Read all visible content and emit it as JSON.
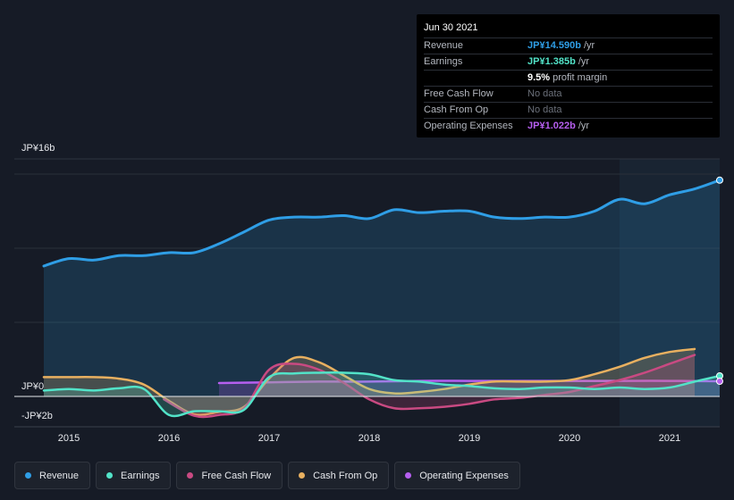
{
  "tooltip": {
    "date": "Jun 30 2021",
    "rows": [
      {
        "label": "Revenue",
        "value": "JP¥14.590b",
        "suffix": "/yr",
        "color": "#2f9ee6"
      },
      {
        "label": "Earnings",
        "value": "JP¥1.385b",
        "suffix": "/yr",
        "color": "#52e3c8"
      },
      {
        "label": "",
        "value": "9.5%",
        "suffix": "profit margin",
        "color": "#ffffff"
      },
      {
        "label": "Free Cash Flow",
        "value": "No data",
        "suffix": "",
        "color": "#6b707a"
      },
      {
        "label": "Cash From Op",
        "value": "No data",
        "suffix": "",
        "color": "#6b707a"
      },
      {
        "label": "Operating Expenses",
        "value": "JP¥1.022b",
        "suffix": "/yr",
        "color": "#b65ff0"
      }
    ]
  },
  "legend": [
    {
      "label": "Revenue",
      "color": "#2f9ee6"
    },
    {
      "label": "Earnings",
      "color": "#52e3c8"
    },
    {
      "label": "Free Cash Flow",
      "color": "#c94a82"
    },
    {
      "label": "Cash From Op",
      "color": "#e8b060"
    },
    {
      "label": "Operating Expenses",
      "color": "#b65ff0"
    }
  ],
  "chart_data": {
    "type": "line",
    "ylabel_top": "JP¥16b",
    "ylabel_zero": "JP¥0",
    "ylabel_bottom": "-JP¥2b",
    "ylim": [
      -2,
      16
    ],
    "xlim": [
      2014.75,
      2021.5
    ],
    "x_ticks": [
      "2015",
      "2016",
      "2017",
      "2018",
      "2019",
      "2020",
      "2021"
    ],
    "forecast_start": 2020.5,
    "series": [
      {
        "name": "Revenue",
        "color": "#2f9ee6",
        "fill": true,
        "points": [
          [
            2014.75,
            8.8
          ],
          [
            2015.0,
            9.3
          ],
          [
            2015.25,
            9.2
          ],
          [
            2015.5,
            9.5
          ],
          [
            2015.75,
            9.5
          ],
          [
            2016.0,
            9.7
          ],
          [
            2016.25,
            9.7
          ],
          [
            2016.5,
            10.3
          ],
          [
            2016.75,
            11.1
          ],
          [
            2017.0,
            11.9
          ],
          [
            2017.25,
            12.1
          ],
          [
            2017.5,
            12.1
          ],
          [
            2017.75,
            12.2
          ],
          [
            2018.0,
            12.0
          ],
          [
            2018.25,
            12.6
          ],
          [
            2018.5,
            12.4
          ],
          [
            2018.75,
            12.5
          ],
          [
            2019.0,
            12.5
          ],
          [
            2019.25,
            12.1
          ],
          [
            2019.5,
            12.0
          ],
          [
            2019.75,
            12.1
          ],
          [
            2020.0,
            12.1
          ],
          [
            2020.25,
            12.5
          ],
          [
            2020.5,
            13.3
          ],
          [
            2020.75,
            13.0
          ],
          [
            2021.0,
            13.6
          ],
          [
            2021.25,
            14.0
          ],
          [
            2021.5,
            14.59
          ]
        ]
      },
      {
        "name": "Earnings",
        "color": "#52e3c8",
        "fill": true,
        "points": [
          [
            2014.75,
            0.4
          ],
          [
            2015.0,
            0.5
          ],
          [
            2015.25,
            0.4
          ],
          [
            2015.5,
            0.55
          ],
          [
            2015.75,
            0.5
          ],
          [
            2016.0,
            -1.25
          ],
          [
            2016.25,
            -1.0
          ],
          [
            2016.5,
            -1.0
          ],
          [
            2016.75,
            -0.9
          ],
          [
            2017.0,
            1.3
          ],
          [
            2017.25,
            1.55
          ],
          [
            2017.5,
            1.6
          ],
          [
            2017.75,
            1.6
          ],
          [
            2018.0,
            1.5
          ],
          [
            2018.25,
            1.1
          ],
          [
            2018.5,
            1.0
          ],
          [
            2018.75,
            0.8
          ],
          [
            2019.0,
            0.7
          ],
          [
            2019.25,
            0.55
          ],
          [
            2019.5,
            0.5
          ],
          [
            2019.75,
            0.6
          ],
          [
            2020.0,
            0.6
          ],
          [
            2020.25,
            0.5
          ],
          [
            2020.5,
            0.6
          ],
          [
            2020.75,
            0.5
          ],
          [
            2021.0,
            0.6
          ],
          [
            2021.25,
            1.0
          ],
          [
            2021.5,
            1.385
          ]
        ]
      },
      {
        "name": "Free Cash Flow",
        "color": "#c94a82",
        "fill": true,
        "points": [
          [
            2015.95,
            -0.2
          ],
          [
            2016.25,
            -1.3
          ],
          [
            2016.5,
            -1.25
          ],
          [
            2016.75,
            -0.8
          ],
          [
            2017.0,
            1.8
          ],
          [
            2017.25,
            2.2
          ],
          [
            2017.5,
            1.8
          ],
          [
            2017.75,
            0.9
          ],
          [
            2018.0,
            -0.2
          ],
          [
            2018.25,
            -0.8
          ],
          [
            2018.5,
            -0.8
          ],
          [
            2018.75,
            -0.7
          ],
          [
            2019.0,
            -0.5
          ],
          [
            2019.25,
            -0.2
          ],
          [
            2019.5,
            -0.1
          ],
          [
            2019.75,
            0.1
          ],
          [
            2020.0,
            0.3
          ],
          [
            2020.25,
            0.7
          ],
          [
            2020.5,
            1.1
          ],
          [
            2020.75,
            1.6
          ],
          [
            2021.0,
            2.2
          ],
          [
            2021.25,
            2.8
          ]
        ]
      },
      {
        "name": "Cash From Op",
        "color": "#e8b060",
        "fill": true,
        "points": [
          [
            2014.75,
            1.3
          ],
          [
            2015.0,
            1.3
          ],
          [
            2015.25,
            1.3
          ],
          [
            2015.5,
            1.2
          ],
          [
            2015.75,
            0.8
          ],
          [
            2016.0,
            -0.3
          ],
          [
            2016.25,
            -1.2
          ],
          [
            2016.5,
            -1.05
          ],
          [
            2016.75,
            -0.7
          ],
          [
            2017.0,
            1.2
          ],
          [
            2017.25,
            2.6
          ],
          [
            2017.5,
            2.3
          ],
          [
            2017.75,
            1.4
          ],
          [
            2018.0,
            0.5
          ],
          [
            2018.25,
            0.2
          ],
          [
            2018.5,
            0.3
          ],
          [
            2018.75,
            0.5
          ],
          [
            2019.0,
            0.8
          ],
          [
            2019.25,
            1.0
          ],
          [
            2019.5,
            1.0
          ],
          [
            2019.75,
            1.0
          ],
          [
            2020.0,
            1.1
          ],
          [
            2020.25,
            1.5
          ],
          [
            2020.5,
            2.0
          ],
          [
            2020.75,
            2.6
          ],
          [
            2021.0,
            3.0
          ],
          [
            2021.25,
            3.2
          ]
        ]
      },
      {
        "name": "Operating Expenses",
        "color": "#b65ff0",
        "fill": true,
        "points": [
          [
            2016.5,
            0.9
          ],
          [
            2017.0,
            0.95
          ],
          [
            2017.5,
            1.0
          ],
          [
            2018.0,
            1.0
          ],
          [
            2018.5,
            1.05
          ],
          [
            2019.0,
            1.05
          ],
          [
            2019.5,
            1.05
          ],
          [
            2020.0,
            1.05
          ],
          [
            2020.5,
            1.05
          ],
          [
            2021.0,
            1.05
          ],
          [
            2021.5,
            1.022
          ]
        ]
      }
    ]
  }
}
